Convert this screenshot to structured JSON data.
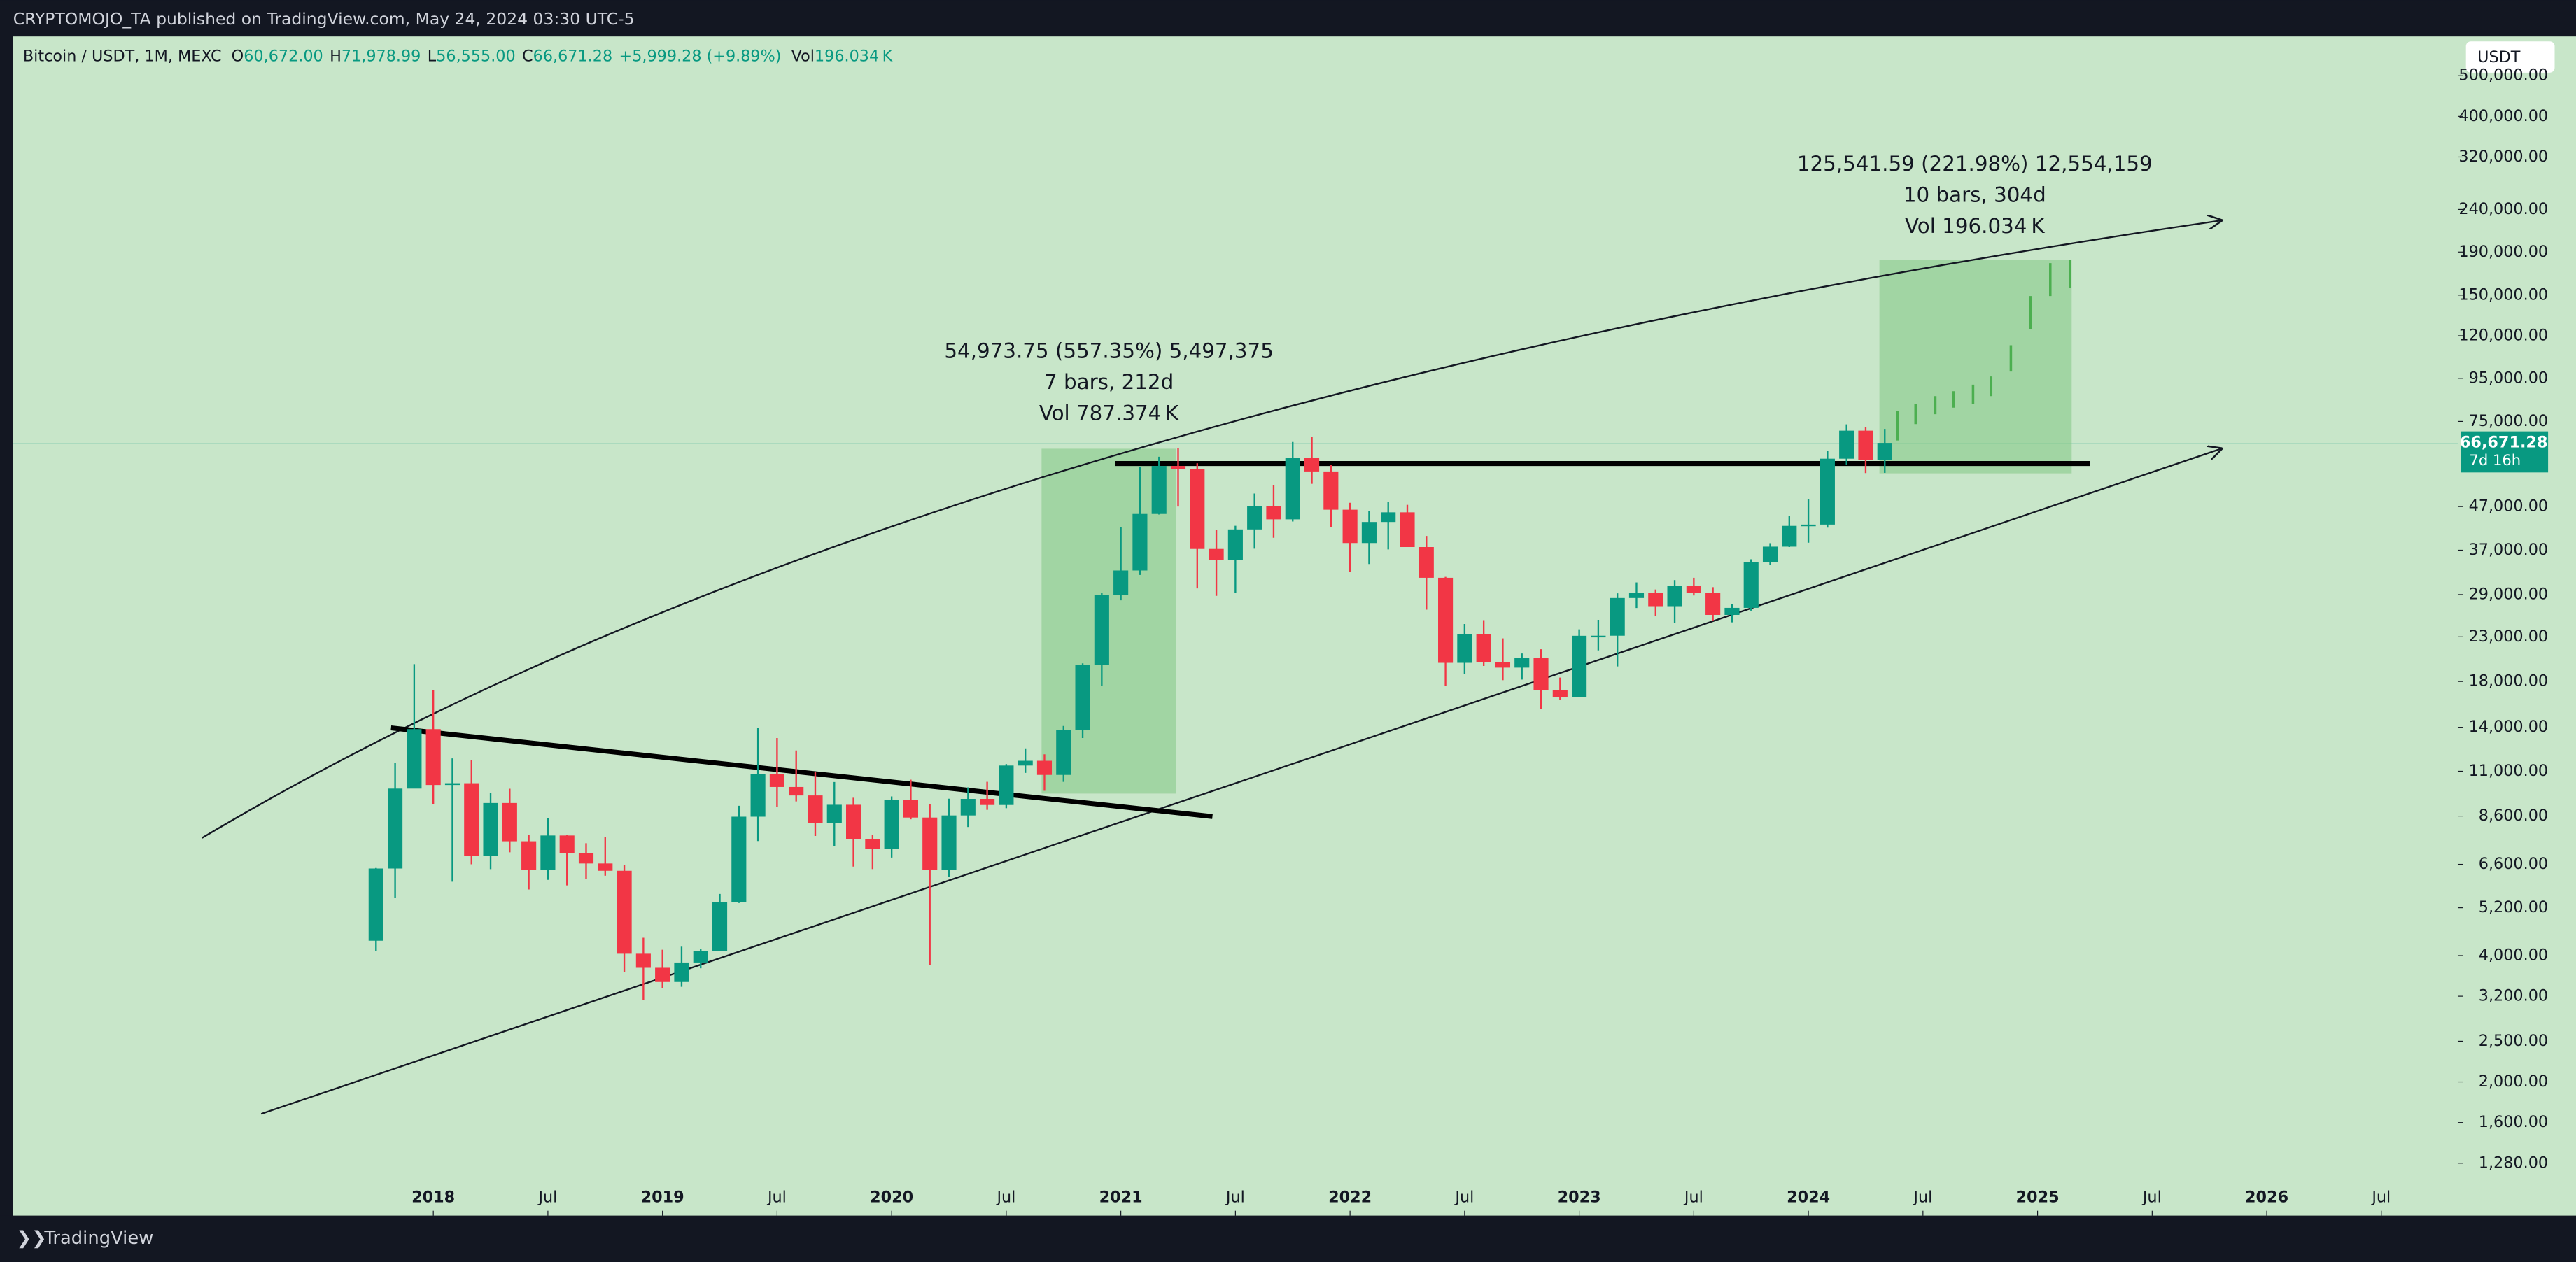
{
  "header": {
    "publisher": "CRYPTOMOJO_TA published on TradingView.com, May 24, 2024 03:30 UTC-5"
  },
  "legend": {
    "symbol": "Bitcoin / USDT, 1M, MEXC",
    "o_label": "O",
    "o": "60,672.00",
    "h_label": "H",
    "h": "71,978.99",
    "l_label": "L",
    "l": "56,555.00",
    "c_label": "C",
    "c": "66,671.28",
    "change": "+5,999.28 (+9.89%)",
    "vol_label": "Vol",
    "vol": "196.034 K"
  },
  "currency_button": "USDT",
  "price_label": {
    "price": "66,671.28",
    "countdown": "7d 16h"
  },
  "measures": [
    {
      "line1": "54,973.75 (557.35%) 5,497,375",
      "line2": "7 bars, 212d",
      "line3": "Vol 787.374 K"
    },
    {
      "line1": "125,541.59 (221.98%) 12,554,159",
      "line2": "10 bars, 304d",
      "line3": "Vol 196.034 K"
    }
  ],
  "footer": {
    "brand": "TradingView"
  },
  "chart_data": {
    "type": "candlestick",
    "log_scale": true,
    "up_color": "#089981",
    "down_color": "#f23645",
    "x": [
      "2017-10",
      "2017-11",
      "2017-12",
      "2018-01",
      "2018-02",
      "2018-03",
      "2018-04",
      "2018-05",
      "2018-06",
      "2018-07",
      "2018-08",
      "2018-09",
      "2018-10",
      "2018-11",
      "2018-12",
      "2019-01",
      "2019-02",
      "2019-03",
      "2019-04",
      "2019-05",
      "2019-06",
      "2019-07",
      "2019-08",
      "2019-09",
      "2019-10",
      "2019-11",
      "2019-12",
      "2020-01",
      "2020-02",
      "2020-03",
      "2020-04",
      "2020-05",
      "2020-06",
      "2020-07",
      "2020-08",
      "2020-09",
      "2020-10",
      "2020-11",
      "2020-12",
      "2021-01",
      "2021-02",
      "2021-03",
      "2021-04",
      "2021-05",
      "2021-06",
      "2021-07",
      "2021-08",
      "2021-09",
      "2021-10",
      "2021-11",
      "2021-12",
      "2022-01",
      "2022-02",
      "2022-03",
      "2022-04",
      "2022-05",
      "2022-06",
      "2022-07",
      "2022-08",
      "2022-09",
      "2022-10",
      "2022-11",
      "2022-12",
      "2023-01",
      "2023-02",
      "2023-03",
      "2023-04",
      "2023-05",
      "2023-06",
      "2023-07",
      "2023-08",
      "2023-09",
      "2023-10",
      "2023-11",
      "2023-12",
      "2024-01",
      "2024-02",
      "2024-03",
      "2024-04",
      "2024-05"
    ],
    "open": [
      4340,
      6450,
      10000,
      13860,
      10200,
      10300,
      6920,
      9240,
      7490,
      6390,
      7730,
      7030,
      6630,
      6370,
      4040,
      3740,
      3460,
      3850,
      4100,
      5360,
      8570,
      10820,
      10090,
      9630,
      8290,
      9150,
      7570,
      7190,
      9380,
      8530,
      6410,
      8630,
      9450,
      9140,
      11350,
      11650,
      10780,
      13800,
      19700,
      28920,
      33100,
      45130,
      58740,
      57700,
      37250,
      35040,
      41460,
      47100,
      43820,
      61300,
      57000,
      46200,
      38480,
      43190,
      45540,
      37640,
      31800,
      19940,
      23300,
      20050,
      19420,
      20490,
      17160,
      16540,
      23130,
      23140,
      28460,
      29250,
      27210,
      30470,
      29230,
      25940,
      26960,
      34640,
      37720,
      42280,
      42580,
      61130,
      71290,
      60672
    ],
    "high": [
      6470,
      11500,
      19800,
      17200,
      11800,
      11700,
      9750,
      9990,
      7750,
      8500,
      7760,
      7410,
      7680,
      6580,
      4410,
      4130,
      4200,
      4140,
      5610,
      9100,
      13970,
      13200,
      12330,
      10950,
      10370,
      9510,
      7750,
      9580,
      10500,
      9190,
      9460,
      10070,
      10380,
      11440,
      12470,
      12070,
      14100,
      19880,
      29300,
      41950,
      58350,
      61780,
      64850,
      59600,
      41330,
      42300,
      50500,
      52900,
      67000,
      69000,
      59100,
      47990,
      45800,
      48200,
      47450,
      40000,
      31960,
      24670,
      25200,
      22800,
      20990,
      21480,
      18390,
      23960,
      25250,
      29200,
      31000,
      29820,
      31400,
      31800,
      30200,
      27480,
      35200,
      38450,
      44700,
      48970,
      63900,
      73800,
      72800,
      71978.99
    ],
    "low": [
      4100,
      5500,
      10400,
      9200,
      6000,
      6600,
      6430,
      7050,
      5750,
      6060,
      5880,
      6100,
      6200,
      3650,
      3130,
      3350,
      3370,
      3730,
      4100,
      5340,
      7500,
      9050,
      9320,
      7710,
      7300,
      6520,
      6430,
      6850,
      8450,
      3800,
      6150,
      8100,
      8900,
      8980,
      10900,
      9880,
      10380,
      13200,
      17600,
      28100,
      32300,
      45000,
      47000,
      30000,
      28800,
      29300,
      37300,
      39600,
      43300,
      53250,
      42000,
      32900,
      34300,
      37150,
      37700,
      26700,
      17600,
      18780,
      19600,
      18130,
      18190,
      15480,
      16260,
      16500,
      21350,
      19550,
      26940,
      25800,
      24800,
      28860,
      25170,
      24900,
      26560,
      34100,
      37640,
      38550,
      41880,
      59000,
      56500,
      56555
    ],
    "close": [
      6450,
      10000,
      13860,
      10200,
      10300,
      6920,
      9240,
      7490,
      6390,
      7730,
      7030,
      6630,
      6370,
      4040,
      3740,
      3460,
      3850,
      4100,
      5360,
      8570,
      10820,
      10090,
      9630,
      8290,
      9150,
      7570,
      7190,
      9380,
      8530,
      6410,
      8630,
      9450,
      9140,
      11350,
      11650,
      10780,
      13800,
      19700,
      28920,
      33100,
      45130,
      58740,
      57700,
      37250,
      35040,
      41460,
      47100,
      43820,
      61300,
      57000,
      46200,
      38480,
      43190,
      45540,
      37640,
      31800,
      19940,
      23300,
      20050,
      19420,
      20490,
      17160,
      16540,
      23130,
      23140,
      28460,
      29250,
      27210,
      30470,
      29230,
      25940,
      26960,
      34640,
      37720,
      42280,
      42580,
      61130,
      71290,
      60672,
      66671.28
    ],
    "xlim": [
      "2016-03",
      "2026-11"
    ],
    "xticks": [
      {
        "value": "2018-01",
        "label": "2018"
      },
      {
        "value": "2018-07",
        "label": "Jul"
      },
      {
        "value": "2019-01",
        "label": "2019"
      },
      {
        "value": "2019-07",
        "label": "Jul"
      },
      {
        "value": "2020-01",
        "label": "2020"
      },
      {
        "value": "2020-07",
        "label": "Jul"
      },
      {
        "value": "2021-01",
        "label": "2021"
      },
      {
        "value": "2021-07",
        "label": "Jul"
      },
      {
        "value": "2022-01",
        "label": "2022"
      },
      {
        "value": "2022-07",
        "label": "Jul"
      },
      {
        "value": "2023-01",
        "label": "2023"
      },
      {
        "value": "2023-07",
        "label": "Jul"
      },
      {
        "value": "2024-01",
        "label": "2024"
      },
      {
        "value": "2024-07",
        "label": "Jul"
      },
      {
        "value": "2025-01",
        "label": "2025"
      },
      {
        "value": "2025-07",
        "label": "Jul"
      },
      {
        "value": "2026-01",
        "label": "2026"
      },
      {
        "value": "2026-07",
        "label": "Jul"
      }
    ],
    "ylim": [
      960,
      620000
    ],
    "yticks": [
      {
        "value": 500000,
        "label": "500,000.00"
      },
      {
        "value": 400000,
        "label": "400,000.00"
      },
      {
        "value": 320000,
        "label": "320,000.00"
      },
      {
        "value": 240000,
        "label": "240,000.00"
      },
      {
        "value": 190000,
        "label": "190,000.00"
      },
      {
        "value": 150000,
        "label": "150,000.00"
      },
      {
        "value": 120000,
        "label": "120,000.00"
      },
      {
        "value": 95000,
        "label": "95,000.00"
      },
      {
        "value": 75000,
        "label": "75,000.00"
      },
      {
        "value": 47000,
        "label": "47,000.00"
      },
      {
        "value": 37000,
        "label": "37,000.00"
      },
      {
        "value": 29000,
        "label": "29,000.00"
      },
      {
        "value": 23000,
        "label": "23,000.00"
      },
      {
        "value": 18000,
        "label": "18,000.00"
      },
      {
        "value": 14000,
        "label": "14,000.00"
      },
      {
        "value": 11000,
        "label": "11,000.00"
      },
      {
        "value": 8600,
        "label": "8,600.00"
      },
      {
        "value": 6600,
        "label": "6,600.00"
      },
      {
        "value": 5200,
        "label": "5,200.00"
      },
      {
        "value": 4000,
        "label": "4,000.00"
      },
      {
        "value": 3200,
        "label": "3,200.00"
      },
      {
        "value": 2500,
        "label": "2,500.00"
      },
      {
        "value": 2000,
        "label": "2,000.00"
      },
      {
        "value": 1600,
        "label": "1,600.00"
      },
      {
        "value": 1280,
        "label": "1,280.00"
      }
    ]
  }
}
